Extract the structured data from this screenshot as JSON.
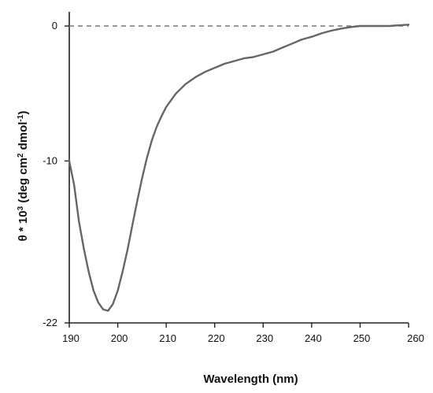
{
  "chart_data": {
    "type": "line",
    "xlabel": "Wavelength (nm)",
    "ylabel_parts": [
      "θ * 10",
      "3",
      " (deg cm",
      "2",
      " dmol",
      "-1",
      ")"
    ],
    "xlim": [
      190,
      260
    ],
    "ylim": [
      -22,
      1
    ],
    "x_ticks": [
      190,
      200,
      210,
      220,
      230,
      240,
      250,
      260
    ],
    "y_ticks": [
      0,
      -10,
      -22
    ],
    "zero_reference_line": true,
    "grid": false,
    "series": [
      {
        "color": "#666666",
        "points": [
          [
            190,
            -10.0
          ],
          [
            191,
            -11.8
          ],
          [
            192,
            -14.5
          ],
          [
            193,
            -16.5
          ],
          [
            194,
            -18.2
          ],
          [
            195,
            -19.6
          ],
          [
            196,
            -20.5
          ],
          [
            197,
            -21.0
          ],
          [
            198,
            -21.1
          ],
          [
            199,
            -20.6
          ],
          [
            200,
            -19.6
          ],
          [
            201,
            -18.2
          ],
          [
            202,
            -16.6
          ],
          [
            203,
            -14.8
          ],
          [
            204,
            -13.0
          ],
          [
            205,
            -11.3
          ],
          [
            206,
            -9.8
          ],
          [
            207,
            -8.5
          ],
          [
            208,
            -7.5
          ],
          [
            209,
            -6.7
          ],
          [
            210,
            -6.0
          ],
          [
            212,
            -5.0
          ],
          [
            214,
            -4.3
          ],
          [
            216,
            -3.8
          ],
          [
            218,
            -3.4
          ],
          [
            220,
            -3.1
          ],
          [
            222,
            -2.8
          ],
          [
            224,
            -2.6
          ],
          [
            226,
            -2.4
          ],
          [
            228,
            -2.3
          ],
          [
            230,
            -2.1
          ],
          [
            232,
            -1.9
          ],
          [
            234,
            -1.6
          ],
          [
            236,
            -1.3
          ],
          [
            238,
            -1.0
          ],
          [
            240,
            -0.8
          ],
          [
            242,
            -0.55
          ],
          [
            244,
            -0.35
          ],
          [
            246,
            -0.2
          ],
          [
            248,
            -0.08
          ],
          [
            250,
            0.0
          ],
          [
            252,
            0.0
          ],
          [
            254,
            0.0
          ],
          [
            256,
            0.0
          ],
          [
            258,
            0.05
          ],
          [
            260,
            0.1
          ]
        ]
      }
    ]
  }
}
